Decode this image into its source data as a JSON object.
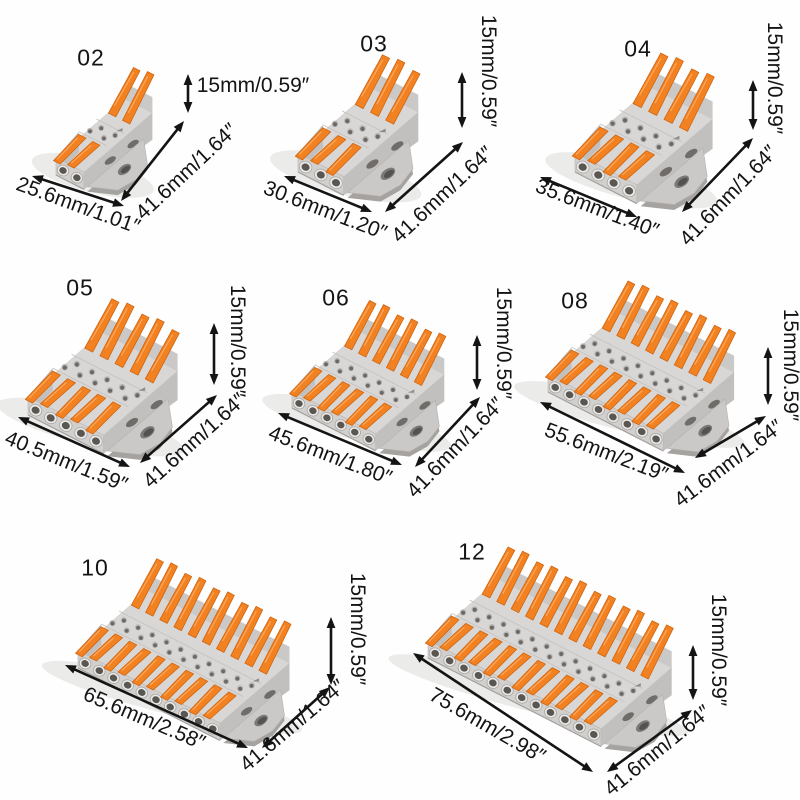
{
  "page": {
    "background": "#fefefe",
    "description": "Lever wire connector size comparison product collage"
  },
  "colors": {
    "text": "#141414",
    "arrow": "#141414",
    "lever_orange": "#f28122",
    "lever_orange_dark": "#cf650f",
    "lever_orange_light": "#ffa85c",
    "body_gray": "#d9d7d5",
    "body_gray_medium": "#cbc9c7",
    "body_gray_dark": "#c2c0be",
    "hole_dark": "#5a5753"
  },
  "products": [
    {
      "id": "02",
      "poles": 2,
      "width_label": "25.6mm/1.01″",
      "depth_label": "41.6mm/1.64″",
      "height_label": "15mm/0.59″"
    },
    {
      "id": "03",
      "poles": 3,
      "width_label": "30.6mm/1.20″",
      "depth_label": "41.6mm/1.64″",
      "height_label": "15mm/0.59″"
    },
    {
      "id": "04",
      "poles": 4,
      "width_label": "35.6mm/1.40″",
      "depth_label": "41.6mm/1.64″",
      "height_label": "15mm/0.59″"
    },
    {
      "id": "05",
      "poles": 5,
      "width_label": "40.5mm/1.59″",
      "depth_label": "41.6mm/1.64″",
      "height_label": "15mm/0.59″"
    },
    {
      "id": "06",
      "poles": 6,
      "width_label": "45.6mm/1.80″",
      "depth_label": "41.6mm/1.64″",
      "height_label": "15mm/0.59″"
    },
    {
      "id": "08",
      "poles": 8,
      "width_label": "55.6mm/2.19″",
      "depth_label": "41.6mm/1.64″",
      "height_label": "15mm/0.59″"
    },
    {
      "id": "10",
      "poles": 10,
      "width_label": "65.6mm/2.58″",
      "depth_label": "41.6mm/1.64″",
      "height_label": "15mm/0.59″"
    },
    {
      "id": "12",
      "poles": 12,
      "width_label": "75.6mm/2.98″",
      "depth_label": "41.6mm/1.64″",
      "height_label": "15mm/0.59″"
    }
  ]
}
